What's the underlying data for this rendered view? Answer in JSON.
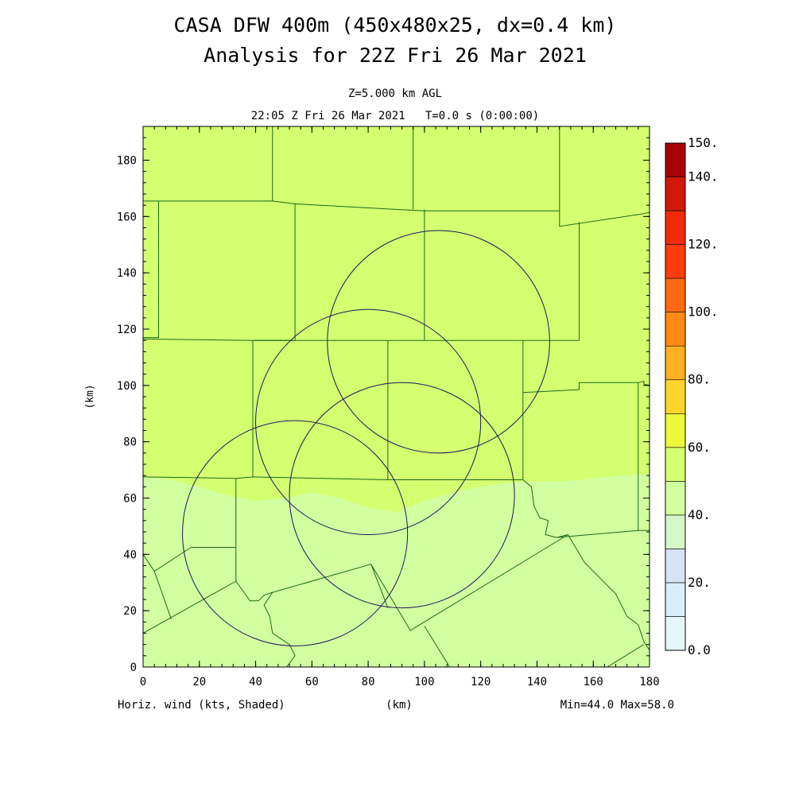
{
  "header": {
    "title_line1": "CASA DFW 400m (450x480x25, dx=0.4 km)",
    "title_line2": "Analysis for 22Z Fri 26 Mar 2021",
    "level": "Z=5.000 km AGL",
    "time": "22:05 Z Fri 26 Mar 2021   T=0.0 s (0:00:00)"
  },
  "footer": {
    "left": "Horiz. wind (kts, Shaded)",
    "center": "(km)",
    "right": "Min=44.0 Max=58.0"
  },
  "chart_data": {
    "type": "heatmap",
    "xlabel": "(km)",
    "ylabel": "(km)",
    "xlim": [
      0,
      180
    ],
    "ylim": [
      0,
      192
    ],
    "x_ticks": [
      0,
      20,
      40,
      60,
      80,
      100,
      120,
      140,
      160,
      180
    ],
    "y_ticks": [
      0,
      20,
      40,
      60,
      80,
      100,
      120,
      140,
      160,
      180
    ],
    "field": "Horizontal wind speed (kts)",
    "min": 44.0,
    "max": 58.0,
    "regions": [
      {
        "name": "north",
        "band": "50-60",
        "color": "#d4ff70"
      },
      {
        "name": "south",
        "band": "40-50",
        "color": "#d2ffa0"
      }
    ],
    "boundary_50kt": [
      [
        0,
        67.5
      ],
      [
        10,
        66.5
      ],
      [
        20,
        64
      ],
      [
        30,
        61
      ],
      [
        40,
        59
      ],
      [
        50,
        60
      ],
      [
        60,
        62
      ],
      [
        70,
        60
      ],
      [
        80,
        56.5
      ],
      [
        90,
        55
      ],
      [
        100,
        59
      ],
      [
        110,
        62
      ],
      [
        120,
        64
      ],
      [
        130,
        65.5
      ],
      [
        140,
        66
      ],
      [
        150,
        66
      ],
      [
        160,
        67
      ],
      [
        170,
        68
      ],
      [
        180,
        68.5
      ]
    ],
    "radar_rings": [
      {
        "cx": 105,
        "cy": 115.5,
        "r": 39.5
      },
      {
        "cx": 80,
        "cy": 87,
        "r": 40
      },
      {
        "cx": 92,
        "cy": 61,
        "r": 40
      },
      {
        "cx": 54,
        "cy": 47.5,
        "r": 40
      }
    ],
    "county_lines": [
      [
        [
          0,
          165.5
        ],
        [
          46,
          165.5
        ],
        [
          46,
          192
        ]
      ],
      [
        [
          5.5,
          165.5
        ],
        [
          5.5,
          117
        ],
        [
          0,
          117
        ]
      ],
      [
        [
          46,
          165.5
        ],
        [
          54,
          164.5
        ],
        [
          100,
          162
        ],
        [
          148,
          162
        ],
        [
          148,
          192
        ]
      ],
      [
        [
          54,
          164.5
        ],
        [
          54,
          116
        ],
        [
          39,
          116
        ],
        [
          0,
          116.5
        ]
      ],
      [
        [
          96,
          192
        ],
        [
          96,
          162.5
        ]
      ],
      [
        [
          100,
          162.5
        ],
        [
          100,
          116
        ]
      ],
      [
        [
          148,
          162
        ],
        [
          148,
          156.5
        ],
        [
          178,
          161
        ],
        [
          180,
          161.5
        ]
      ],
      [
        [
          155,
          158
        ],
        [
          155,
          116
        ]
      ],
      [
        [
          39,
          116
        ],
        [
          155,
          116
        ]
      ],
      [
        [
          39,
          116
        ],
        [
          39,
          67.5
        ]
      ],
      [
        [
          87,
          116
        ],
        [
          87,
          66.5
        ]
      ],
      [
        [
          135,
          116
        ],
        [
          135,
          66.5
        ]
      ],
      [
        [
          135,
          97.5
        ],
        [
          155,
          98.5
        ],
        [
          155,
          101
        ],
        [
          176,
          101
        ],
        [
          178,
          101.5
        ],
        [
          178,
          100.5
        ],
        [
          180,
          100
        ]
      ],
      [
        [
          176,
          101
        ],
        [
          176,
          48.5
        ],
        [
          180,
          48.5
        ]
      ],
      [
        [
          0,
          67.5
        ],
        [
          33,
          67
        ],
        [
          39,
          67.5
        ],
        [
          87,
          66.5
        ],
        [
          135,
          66.5
        ],
        [
          138,
          64
        ],
        [
          139,
          57
        ],
        [
          141,
          53
        ],
        [
          144,
          52
        ],
        [
          143,
          47
        ],
        [
          147,
          46
        ]
      ],
      [
        [
          33,
          67
        ],
        [
          33,
          30.5
        ],
        [
          0,
          12
        ],
        [
          0,
          11
        ]
      ],
      [
        [
          17,
          42.5
        ],
        [
          33,
          42.5
        ]
      ],
      [
        [
          0,
          40
        ],
        [
          4,
          34
        ],
        [
          17,
          42.5
        ]
      ],
      [
        [
          4,
          34
        ],
        [
          10,
          17
        ]
      ],
      [
        [
          33,
          30.5
        ],
        [
          38,
          23.5
        ],
        [
          41,
          23.5
        ],
        [
          43,
          25.5
        ],
        [
          46,
          26.5
        ],
        [
          81,
          36.5
        ],
        [
          95,
          13
        ],
        [
          151,
          47
        ],
        [
          147,
          46
        ],
        [
          176,
          48.5
        ]
      ],
      [
        [
          46,
          26.5
        ],
        [
          43,
          22
        ],
        [
          45,
          18
        ],
        [
          46,
          12
        ],
        [
          49,
          10
        ],
        [
          52,
          8
        ],
        [
          54,
          4
        ],
        [
          51,
          0
        ]
      ],
      [
        [
          81,
          36.5
        ],
        [
          87,
          21
        ]
      ],
      [
        [
          100,
          14.5
        ],
        [
          109,
          0
        ]
      ],
      [
        [
          151,
          47
        ],
        [
          157,
          37
        ],
        [
          163,
          31
        ],
        [
          168,
          26
        ],
        [
          172,
          18
        ],
        [
          176,
          15
        ],
        [
          178,
          9
        ],
        [
          180,
          6
        ]
      ],
      [
        [
          165,
          0
        ],
        [
          178,
          8
        ]
      ]
    ],
    "colorbar": {
      "labels": [
        "0.0",
        "20.",
        "40.",
        "60.",
        "80.",
        "100.",
        "120.",
        "140.",
        "150."
      ],
      "bands": [
        {
          "from": 0,
          "to": 10,
          "color": "#e6f7fb"
        },
        {
          "from": 10,
          "to": 20,
          "color": "#d9eefb"
        },
        {
          "from": 20,
          "to": 30,
          "color": "#d6e3f5"
        },
        {
          "from": 30,
          "to": 40,
          "color": "#d5f6c6"
        },
        {
          "from": 40,
          "to": 50,
          "color": "#d2ffa0"
        },
        {
          "from": 50,
          "to": 60,
          "color": "#d4ff70"
        },
        {
          "from": 60,
          "to": 70,
          "color": "#eaf93a"
        },
        {
          "from": 70,
          "to": 80,
          "color": "#ffd52c"
        },
        {
          "from": 80,
          "to": 90,
          "color": "#ffb020"
        },
        {
          "from": 90,
          "to": 100,
          "color": "#ff8a14"
        },
        {
          "from": 100,
          "to": 110,
          "color": "#ff6a10"
        },
        {
          "from": 110,
          "to": 120,
          "color": "#ff3c0c"
        },
        {
          "from": 120,
          "to": 130,
          "color": "#f22a0a"
        },
        {
          "from": 130,
          "to": 140,
          "color": "#d2180a"
        },
        {
          "from": 140,
          "to": 150,
          "color": "#a80008"
        }
      ]
    }
  }
}
